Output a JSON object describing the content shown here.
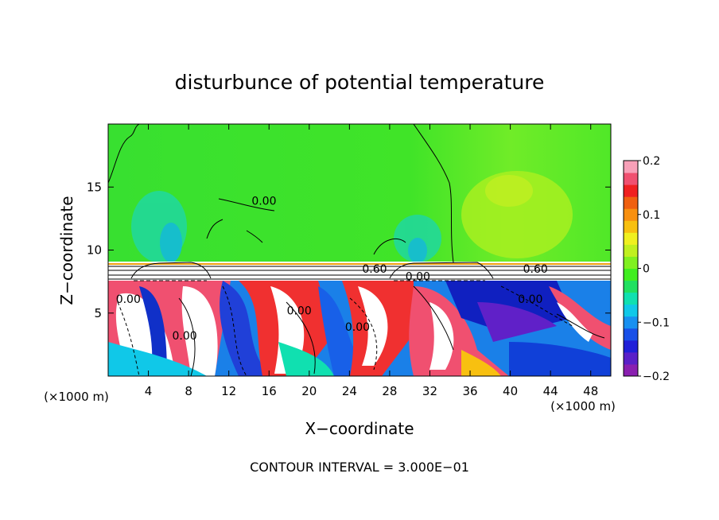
{
  "chart_data": {
    "type": "heatmap",
    "title": "disturbunce of potential temperature",
    "xlabel": "X−coordinate",
    "ylabel": "Z−coordinate",
    "x_unit_left": "(×1000 m)",
    "x_unit_right": "(×1000 m)",
    "xlim": [
      0,
      50
    ],
    "ylim": [
      0,
      20
    ],
    "xticks": [
      4,
      8,
      12,
      16,
      20,
      24,
      28,
      32,
      36,
      40,
      44,
      48
    ],
    "yticks": [
      5,
      10,
      15
    ],
    "colorbar": {
      "min": -0.2,
      "max": 0.2,
      "ticks": [
        0.2,
        0.1,
        0,
        -0.1,
        -0.2
      ],
      "tick_labels": [
        "0.2",
        "0.1",
        "0",
        "−0.1",
        "−0.2"
      ],
      "colors": [
        "#8a1fb0",
        "#5a20c8",
        "#2020d8",
        "#1850e8",
        "#1890f0",
        "#10c8e8",
        "#10e0b0",
        "#20e060",
        "#40ee20",
        "#80f020",
        "#c0f020",
        "#f0f020",
        "#f8c010",
        "#f89010",
        "#f06010",
        "#f02020",
        "#f05070",
        "#f8a0b8"
      ]
    },
    "contour_labels": [
      {
        "text": "0.00",
        "x": 15.5,
        "y": 13.6
      },
      {
        "text": "0.60",
        "x": 26.5,
        "y": 8.2
      },
      {
        "text": "0.60",
        "x": 42.5,
        "y": 8.2
      },
      {
        "text": "0.00",
        "x": 30.8,
        "y": 7.6
      },
      {
        "text": "0.00",
        "x": 19.0,
        "y": 4.9
      },
      {
        "text": "0.00",
        "x": 24.8,
        "y": 3.6
      },
      {
        "text": "0.00",
        "x": 2.0,
        "y": 5.8
      },
      {
        "text": "0.00",
        "x": 7.6,
        "y": 2.9
      },
      {
        "text": "0.00",
        "x": 42.0,
        "y": 5.8
      }
    ],
    "grid": false,
    "legend": "colorbar right"
  },
  "annotation": "CONTOUR INTERVAL = 3.000E−01"
}
